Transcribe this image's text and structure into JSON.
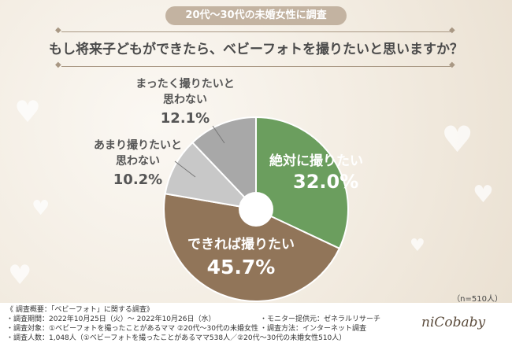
{
  "header": {
    "badge": "20代〜30代の未婚女性に調査",
    "question": "もし将来子どもができたら、ベビーフォトを撮りたいと思いますか？"
  },
  "chart_data": {
    "type": "pie",
    "slices": [
      {
        "label": "絶対に撮りたい",
        "value": 32.0,
        "display": "32.0%",
        "color": "#6b9e5e"
      },
      {
        "label": "できれば撮りたい",
        "value": 45.7,
        "display": "45.7%",
        "color": "#917559"
      },
      {
        "label": "あまり撮りたいと思わない",
        "line1": "あまり撮りたいと",
        "line2": "思わない",
        "value": 10.2,
        "display": "10.2%",
        "color": "#c8c8c8"
      },
      {
        "label": "まったく撮りたいと思わない",
        "line1": "まったく撮りたいと",
        "line2": "思わない",
        "value": 12.1,
        "display": "12.1%",
        "color": "#a8a8a8"
      }
    ],
    "sample_size": "（n=510人）"
  },
  "footer": {
    "survey_title": "《 調査概要：「ベビーフォト」に関する調査》",
    "period": "・調査期間：2022年10月25日（火）〜 2022年10月26日（水）",
    "target": "・調査対象：①ベビーフォトを撮ったことがあるママ ②20代〜30代の未婚女性",
    "count": "・調査人数：1,048人（①ベビーフォトを撮ったことがあるママ538人／②20代〜30代の未婚女性510人）",
    "provider": "・モニター提供元：ゼネラルリサーチ",
    "method": "・調査方法：インターネット調査",
    "logo": "niCobaby"
  }
}
